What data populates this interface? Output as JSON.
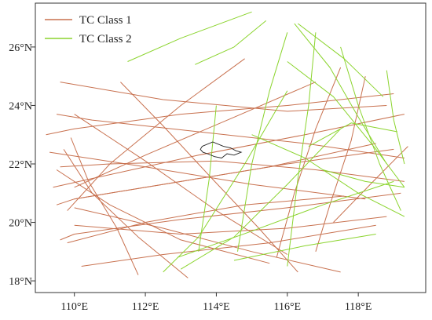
{
  "chart_data": {
    "type": "line",
    "title": "",
    "xlabel": "",
    "ylabel": "",
    "xlim": [
      108.9,
      119.9
    ],
    "ylim": [
      17.6,
      27.5
    ],
    "grid": false,
    "legend_position": "top-left",
    "x_ticks": [
      {
        "value": 110,
        "label": "110°E"
      },
      {
        "value": 112,
        "label": "112°E"
      },
      {
        "value": 114,
        "label": "114°E"
      },
      {
        "value": 116,
        "label": "116°E"
      },
      {
        "value": 118,
        "label": "118°E"
      }
    ],
    "y_ticks": [
      {
        "value": 18,
        "label": "18°N"
      },
      {
        "value": 20,
        "label": "20°N"
      },
      {
        "value": 22,
        "label": "22°N"
      },
      {
        "value": 24,
        "label": "24°N"
      },
      {
        "value": 26,
        "label": "26°N"
      }
    ],
    "series": [
      {
        "name": "TC Class 1",
        "color": "#c8714f",
        "tracks": [
          [
            [
              119.3,
              23.7
            ],
            [
              116.5,
              23.0
            ],
            [
              113.5,
              22.3
            ],
            [
              110.5,
              21.5
            ],
            [
              109.4,
              21.2
            ]
          ],
          [
            [
              119.0,
              22.5
            ],
            [
              116.0,
              22.0
            ],
            [
              113.0,
              21.4
            ],
            [
              110.0,
              20.8
            ],
            [
              109.5,
              20.6
            ]
          ],
          [
            [
              119.2,
              21.0
            ],
            [
              116.0,
              20.5
            ],
            [
              113.0,
              20.1
            ],
            [
              110.0,
              19.6
            ],
            [
              109.6,
              19.4
            ]
          ],
          [
            [
              118.5,
              19.9
            ],
            [
              115.5,
              19.3
            ],
            [
              112.5,
              18.9
            ],
            [
              110.2,
              18.5
            ]
          ],
          [
            [
              118.2,
              20.8
            ],
            [
              115.0,
              21.3
            ],
            [
              112.0,
              21.9
            ],
            [
              109.3,
              22.4
            ]
          ],
          [
            [
              119.3,
              22.2
            ],
            [
              116.5,
              22.7
            ],
            [
              113.5,
              23.1
            ],
            [
              110.5,
              23.5
            ],
            [
              109.5,
              23.7
            ]
          ],
          [
            [
              119.0,
              24.4
            ],
            [
              116.0,
              24.0
            ],
            [
              113.0,
              23.7
            ],
            [
              110.0,
              23.2
            ],
            [
              109.2,
              23.0
            ]
          ],
          [
            [
              115.5,
              18.6
            ],
            [
              113.0,
              19.4
            ],
            [
              111.0,
              20.6
            ],
            [
              109.5,
              21.8
            ]
          ],
          [
            [
              117.5,
              18.3
            ],
            [
              115.0,
              19.0
            ],
            [
              112.5,
              19.8
            ],
            [
              110.0,
              20.5
            ]
          ],
          [
            [
              118.8,
              20.2
            ],
            [
              116.0,
              19.8
            ],
            [
              113.0,
              19.6
            ],
            [
              110.0,
              19.9
            ]
          ],
          [
            [
              113.2,
              18.1
            ],
            [
              111.8,
              19.5
            ],
            [
              110.5,
              21.0
            ],
            [
              109.7,
              22.5
            ]
          ],
          [
            [
              111.8,
              18.2
            ],
            [
              111.2,
              19.8
            ],
            [
              110.4,
              21.4
            ],
            [
              109.9,
              22.9
            ]
          ],
          [
            [
              114.8,
              25.6
            ],
            [
              113.0,
              24.0
            ],
            [
              111.0,
              22.0
            ],
            [
              109.8,
              20.4
            ]
          ],
          [
            [
              118.5,
              22.7
            ],
            [
              115.5,
              21.9
            ],
            [
              112.5,
              21.3
            ],
            [
              110.0,
              20.8
            ]
          ],
          [
            [
              116.8,
              24.8
            ],
            [
              114.5,
              23.6
            ],
            [
              112.0,
              22.3
            ],
            [
              110.0,
              21.2
            ]
          ],
          [
            [
              111.3,
              24.8
            ],
            [
              112.5,
              23.3
            ],
            [
              113.8,
              21.6
            ],
            [
              115.2,
              19.8
            ],
            [
              116.3,
              18.3
            ]
          ],
          [
            [
              110.0,
              23.7
            ],
            [
              112.0,
              22.1
            ],
            [
              114.0,
              20.4
            ],
            [
              116.0,
              18.9
            ]
          ],
          [
            [
              117.5,
              25.3
            ],
            [
              116.8,
              23.2
            ],
            [
              116.2,
              21.0
            ],
            [
              115.7,
              18.8
            ]
          ],
          [
            [
              118.2,
              25.0
            ],
            [
              117.8,
              22.8
            ],
            [
              117.2,
              20.6
            ],
            [
              116.8,
              19.0
            ]
          ],
          [
            [
              119.4,
              22.6
            ],
            [
              118.5,
              21.5
            ],
            [
              117.3,
              20.0
            ]
          ],
          [
            [
              118.8,
              24.0
            ],
            [
              116.0,
              23.8
            ],
            [
              112.5,
              24.2
            ],
            [
              109.6,
              24.8
            ]
          ],
          [
            [
              117.6,
              20.9
            ],
            [
              114.8,
              20.6
            ],
            [
              112.0,
              20.0
            ],
            [
              109.8,
              19.3
            ]
          ],
          [
            [
              119.3,
              21.4
            ],
            [
              116.8,
              21.8
            ],
            [
              114.0,
              22.1
            ],
            [
              111.0,
              22.0
            ],
            [
              109.6,
              21.9
            ]
          ]
        ]
      },
      {
        "name": "TC Class 2",
        "color": "#8bd42e",
        "tracks": [
          [
            [
              111.5,
              25.5
            ],
            [
              113.0,
              26.3
            ],
            [
              115.0,
              27.2
            ]
          ],
          [
            [
              113.4,
              25.4
            ],
            [
              114.5,
              26.0
            ],
            [
              115.4,
              26.9
            ]
          ],
          [
            [
              116.2,
              26.8
            ],
            [
              117.2,
              25.3
            ],
            [
              118.0,
              23.6
            ],
            [
              118.8,
              22.0
            ]
          ],
          [
            [
              116.0,
              26.5
            ],
            [
              115.5,
              24.5
            ],
            [
              115.0,
              22.0
            ],
            [
              114.6,
              19.0
            ]
          ],
          [
            [
              116.8,
              26.5
            ],
            [
              116.6,
              24.0
            ],
            [
              116.3,
              21.5
            ],
            [
              116.0,
              18.5
            ]
          ],
          [
            [
              117.5,
              26.0
            ],
            [
              118.0,
              24.0
            ],
            [
              118.6,
              22.0
            ],
            [
              119.2,
              20.4
            ]
          ],
          [
            [
              118.8,
              25.2
            ],
            [
              119.0,
              23.5
            ],
            [
              119.3,
              22.0
            ]
          ],
          [
            [
              114.0,
              24.0
            ],
            [
              113.8,
              21.5
            ],
            [
              113.5,
              19.0
            ]
          ],
          [
            [
              116.0,
              24.5
            ],
            [
              114.8,
              22.0
            ],
            [
              113.5,
              19.5
            ],
            [
              112.5,
              18.3
            ]
          ],
          [
            [
              117.5,
              23.2
            ],
            [
              116.0,
              21.3
            ],
            [
              114.5,
              19.5
            ],
            [
              113.0,
              18.4
            ]
          ],
          [
            [
              119.0,
              21.4
            ],
            [
              117.0,
              20.6
            ],
            [
              115.0,
              19.7
            ],
            [
              112.9,
              18.8
            ]
          ],
          [
            [
              118.5,
              19.6
            ],
            [
              116.5,
              19.2
            ],
            [
              114.5,
              18.7
            ]
          ],
          [
            [
              116.0,
              25.5
            ],
            [
              117.3,
              24.3
            ],
            [
              118.5,
              22.5
            ],
            [
              119.3,
              21.2
            ]
          ],
          [
            [
              116.3,
              26.8
            ],
            [
              117.6,
              25.6
            ],
            [
              118.7,
              24.3
            ]
          ],
          [
            [
              115.0,
              23.0
            ],
            [
              116.5,
              22.2
            ],
            [
              118.0,
              21.0
            ],
            [
              119.3,
              20.2
            ]
          ],
          [
            [
              117.0,
              21.8
            ],
            [
              118.2,
              21.4
            ],
            [
              119.3,
              21.2
            ]
          ],
          [
            [
              116.6,
              22.6
            ],
            [
              117.8,
              23.4
            ],
            [
              119.1,
              23.1
            ]
          ]
        ]
      }
    ],
    "region_outline": [
      [
        113.6,
        22.6
      ],
      [
        113.9,
        22.75
      ],
      [
        114.2,
        22.6
      ],
      [
        114.4,
        22.55
      ],
      [
        114.55,
        22.45
      ],
      [
        114.7,
        22.4
      ],
      [
        114.5,
        22.3
      ],
      [
        114.3,
        22.35
      ],
      [
        114.15,
        22.2
      ],
      [
        113.95,
        22.25
      ],
      [
        113.75,
        22.35
      ],
      [
        113.62,
        22.4
      ],
      [
        113.55,
        22.5
      ],
      [
        113.6,
        22.6
      ]
    ]
  }
}
